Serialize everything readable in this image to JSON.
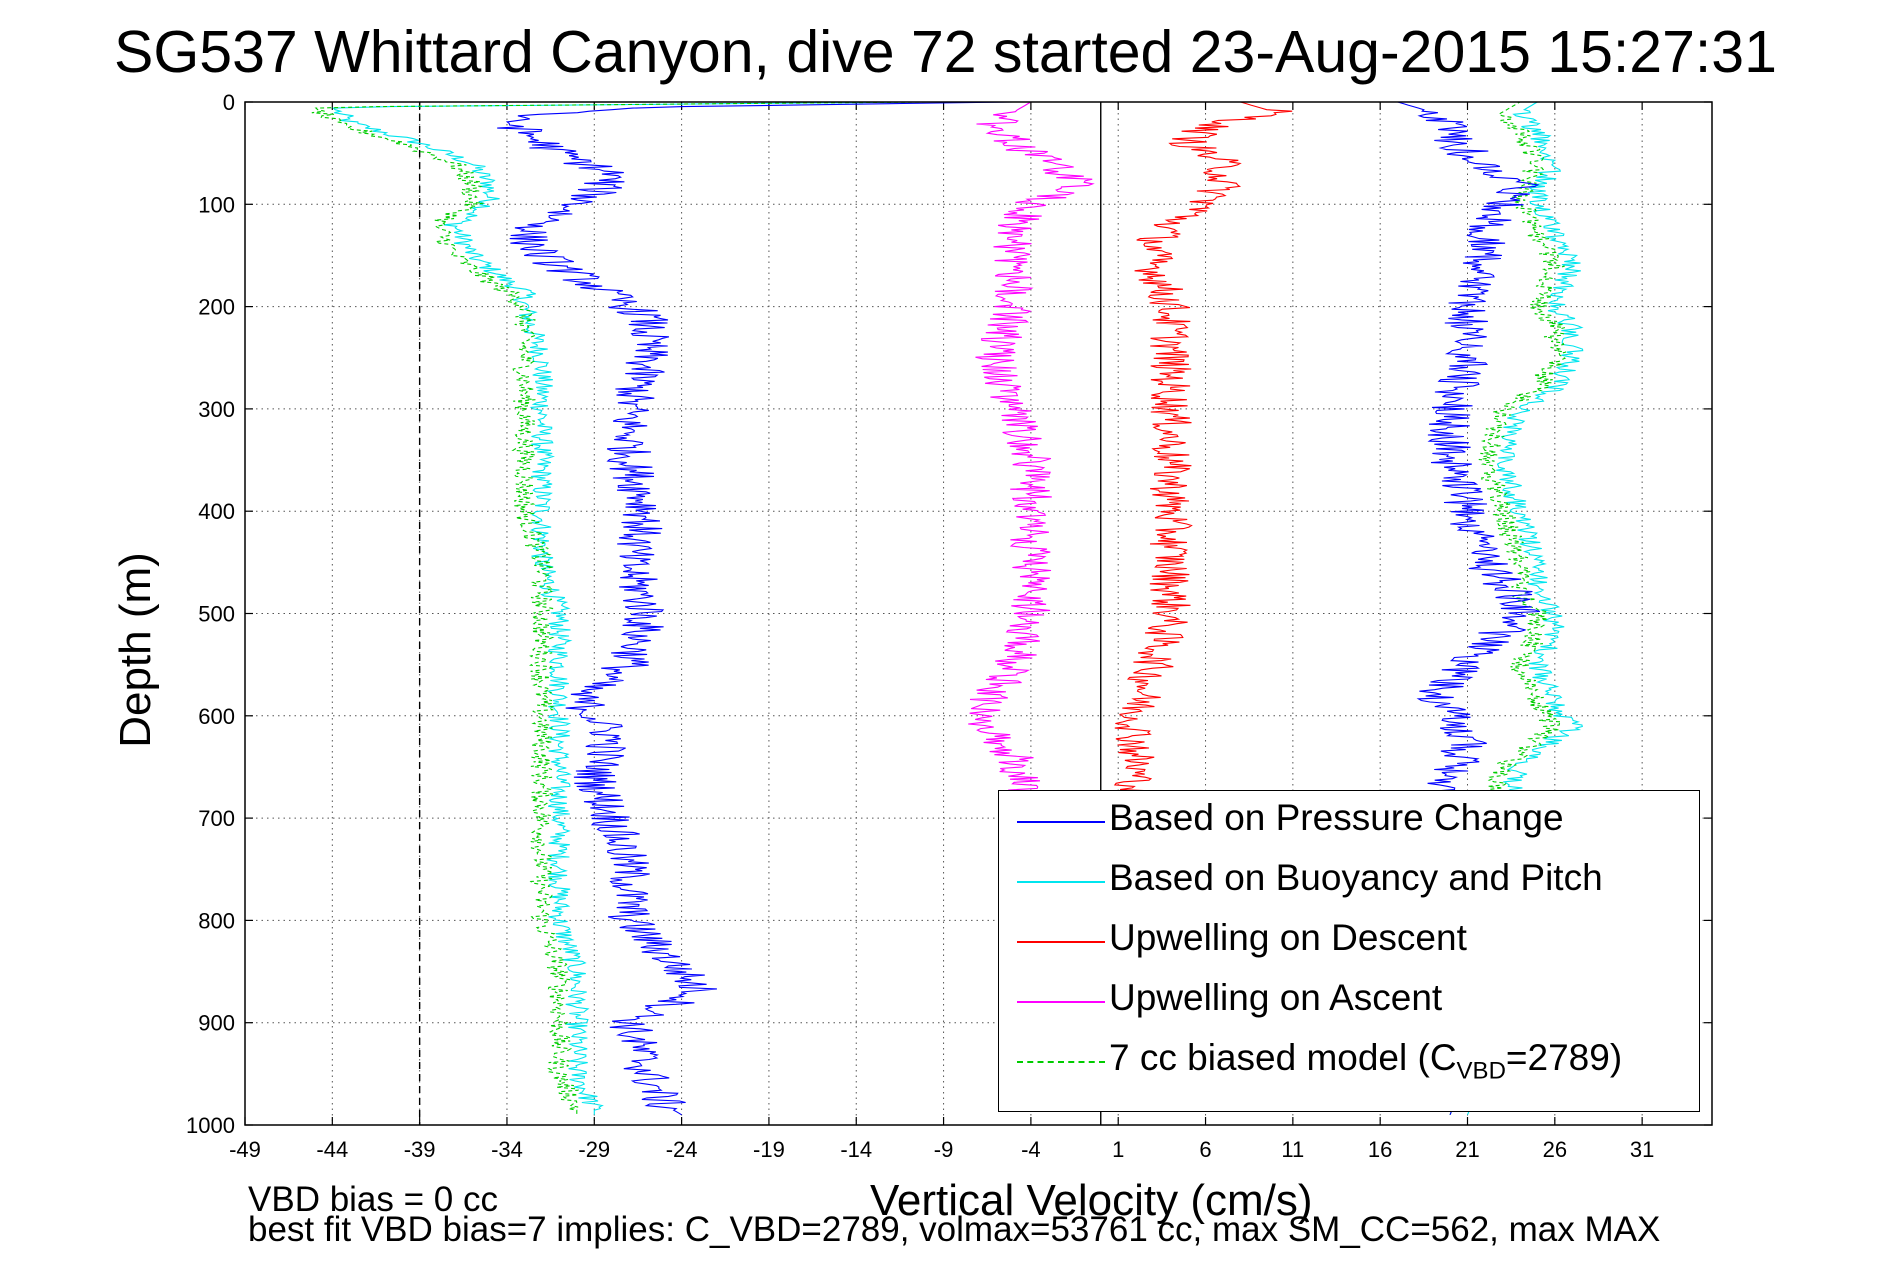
{
  "title": "SG537 Whittard Canyon, dive 72 started 23-Aug-2015 15:27:31",
  "notes": {
    "line1": "VBD bias = 0 cc",
    "line2": "best fit VBD bias=7 implies: C_VBD=2789, volmax=53761 cc, max SM_CC=562, max MAX"
  },
  "chart_data": {
    "type": "line",
    "xlabel": "Vertical Velocity (cm/s)",
    "ylabel": "Depth (m)",
    "xlim": [
      -49,
      35
    ],
    "ylim": [
      0,
      1000
    ],
    "y_reversed": true,
    "xticks": [
      -49,
      -44,
      -39,
      -34,
      -29,
      -24,
      -19,
      -14,
      -9,
      -4,
      1,
      6,
      11,
      16,
      21,
      26,
      31
    ],
    "yticks": [
      0,
      100,
      200,
      300,
      400,
      500,
      600,
      700,
      800,
      900,
      1000
    ],
    "grid": true,
    "legend_position": "bottom-right",
    "reference_lines": [
      {
        "x": -39,
        "style": "dashed",
        "color": "#000000"
      },
      {
        "x": 0,
        "style": "solid",
        "color": "#000000"
      }
    ],
    "series": [
      {
        "name": "Based on Pressure Change",
        "color": "#0000ff",
        "style": "solid",
        "descent": {
          "depth": [
            0,
            5,
            15,
            30,
            50,
            70,
            90,
            110,
            130,
            150,
            170,
            190,
            210,
            250,
            300,
            350,
            400,
            450,
            500,
            550,
            580,
            620,
            660,
            700,
            750,
            800,
            850,
            870,
            900,
            950,
            980,
            990
          ],
          "velocity": [
            -5,
            -26,
            -34,
            -33,
            -31,
            -28,
            -29,
            -31,
            -33,
            -32,
            -30,
            -28,
            -26,
            -26,
            -27,
            -27,
            -26,
            -27,
            -26,
            -27,
            -30,
            -28,
            -29,
            -28,
            -27,
            -27,
            -24,
            -23,
            -27,
            -26,
            -25,
            -24
          ]
        },
        "ascent": {
          "depth": [
            990,
            950,
            900,
            850,
            800,
            750,
            700,
            660,
            620,
            580,
            550,
            500,
            490,
            450,
            400,
            350,
            300,
            250,
            200,
            160,
            130,
            100,
            80,
            50,
            30,
            10,
            0
          ],
          "velocity": [
            20,
            21,
            21,
            21,
            21,
            21,
            20,
            20,
            21,
            19,
            21,
            24,
            24,
            22,
            21,
            20,
            20,
            21,
            21,
            22,
            22,
            23,
            24,
            21,
            20,
            19,
            17
          ]
        }
      },
      {
        "name": "Based on Buoyancy and Pitch",
        "color": "#00e5ee",
        "style": "solid",
        "descent": {
          "depth": [
            0,
            5,
            20,
            40,
            60,
            80,
            100,
            120,
            150,
            175,
            185,
            200,
            250,
            300,
            350,
            400,
            450,
            500,
            550,
            600,
            650,
            700,
            750,
            800,
            850,
            900,
            950,
            985,
            990
          ],
          "velocity": [
            -10,
            -44,
            -43,
            -39,
            -36,
            -35,
            -35,
            -37,
            -36,
            -34,
            -33,
            -33,
            -32,
            -32,
            -32,
            -32,
            -32,
            -31,
            -31,
            -31,
            -31,
            -31,
            -31,
            -31,
            -30,
            -30,
            -30,
            -29,
            -29
          ]
        },
        "ascent": {
          "depth": [
            990,
            950,
            900,
            850,
            800,
            750,
            700,
            650,
            610,
            590,
            550,
            520,
            500,
            480,
            450,
            400,
            350,
            300,
            280,
            250,
            220,
            200,
            160,
            130,
            90,
            60,
            30,
            10,
            0
          ],
          "velocity": [
            21,
            22,
            23,
            23,
            23,
            23,
            23,
            24,
            27,
            26,
            25,
            26,
            26,
            25,
            25,
            24,
            23,
            24,
            26,
            27,
            27,
            26,
            27,
            26,
            25,
            26,
            25,
            24,
            25
          ]
        }
      },
      {
        "name": "Upwelling on Descent",
        "color": "#ff0000",
        "style": "solid",
        "depth": [
          0,
          10,
          25,
          40,
          60,
          80,
          100,
          120,
          140,
          160,
          200,
          250,
          300,
          350,
          400,
          450,
          500,
          550,
          600,
          640,
          680
        ],
        "velocity": [
          8,
          10,
          6,
          5,
          7,
          7,
          6,
          4,
          3,
          3,
          4,
          4,
          4,
          4,
          4,
          4,
          4,
          3,
          2,
          2,
          2
        ]
      },
      {
        "name": "Upwelling on Ascent",
        "color": "#ff00ff",
        "style": "solid",
        "depth": [
          680,
          640,
          600,
          550,
          500,
          450,
          400,
          350,
          300,
          250,
          200,
          160,
          120,
          100,
          80,
          60,
          40,
          20,
          0
        ],
        "velocity": [
          -4,
          -5,
          -7,
          -5,
          -4,
          -4,
          -4,
          -4,
          -5,
          -6,
          -5,
          -5,
          -5,
          -4,
          -1,
          -3,
          -5,
          -6,
          -4
        ]
      },
      {
        "name": "7 cc biased model (C_VBD=2789)",
        "color": "#00cc00",
        "style": "dashed",
        "descent": {
          "depth": [
            0,
            5,
            20,
            40,
            60,
            80,
            100,
            120,
            150,
            175,
            185,
            200,
            250,
            300,
            350,
            400,
            450,
            500,
            550,
            600,
            650,
            700,
            750,
            800,
            850,
            900,
            950,
            985,
            990
          ],
          "velocity": [
            -10,
            -45,
            -44,
            -40,
            -37,
            -36,
            -36,
            -38,
            -37,
            -35,
            -34,
            -33,
            -33,
            -33,
            -33,
            -33,
            -32,
            -32,
            -32,
            -32,
            -32,
            -32,
            -32,
            -32,
            -31,
            -31,
            -31,
            -30,
            -30
          ]
        },
        "ascent": {
          "depth": [
            990,
            950,
            900,
            850,
            800,
            750,
            700,
            650,
            610,
            590,
            550,
            520,
            500,
            480,
            450,
            400,
            350,
            300,
            280,
            250,
            220,
            200,
            160,
            130,
            90,
            60,
            30,
            10,
            0
          ],
          "velocity": [
            20,
            21,
            22,
            22,
            22,
            22,
            22,
            23,
            26,
            25,
            24,
            25,
            25,
            24,
            24,
            23,
            22,
            23,
            25,
            26,
            26,
            25,
            26,
            25,
            24,
            25,
            24,
            23,
            24
          ]
        }
      }
    ],
    "legend": [
      {
        "label": "Based on Pressure Change",
        "color": "#0000ff",
        "style": "solid"
      },
      {
        "label": "Based on Buoyancy and Pitch",
        "color": "#00e5ee",
        "style": "solid"
      },
      {
        "label": "Upwelling on Descent",
        "color": "#ff0000",
        "style": "solid"
      },
      {
        "label": "Upwelling on Ascent",
        "color": "#ff00ff",
        "style": "solid"
      },
      {
        "label_main": "7 cc biased model (C",
        "label_sub": "VBD",
        "label_end": "=2789)",
        "color": "#00cc00",
        "style": "dashed"
      }
    ]
  }
}
